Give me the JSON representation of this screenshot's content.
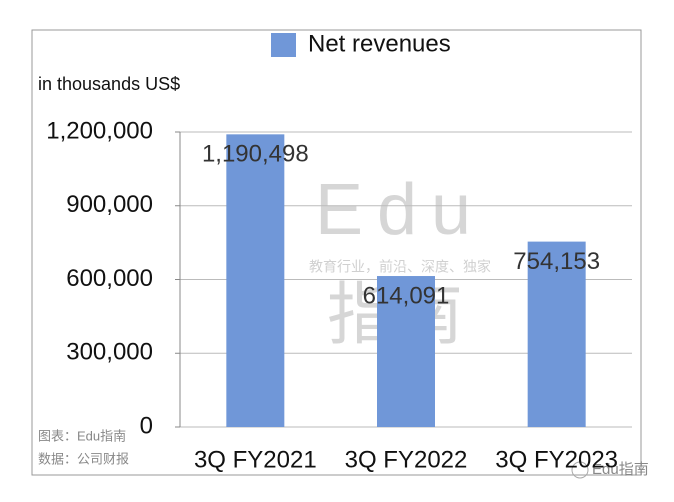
{
  "chart_data": {
    "type": "bar",
    "title": "Net revenues",
    "y_label": "in thousands US$",
    "categories": [
      "3Q FY2021",
      "3Q FY2022",
      "3Q FY2023"
    ],
    "series": [
      {
        "name": "Net revenues",
        "color": "#7097d8",
        "values": [
          1190498,
          614091,
          754153
        ],
        "value_labels": [
          "1,190,498",
          "614,091",
          "754,153"
        ]
      }
    ],
    "ylim": [
      0,
      1200000
    ],
    "yticks": [
      0,
      {
        "value": 300000,
        "label": "300,000"
      },
      {
        "value": 600000,
        "label": "600,000"
      },
      {
        "value": 900000,
        "label": "900,000"
      },
      {
        "value": 1200000,
        "label": "1,200,000"
      }
    ],
    "grid": true,
    "legend": "top"
  },
  "watermark": {
    "brand": "Edu",
    "brand_cn": "指南",
    "slogan": "教育行业，前沿、深度、独家"
  },
  "notes": [
    "图表：Edu指南",
    "数据：公司财报"
  ],
  "badge": "Edu指南"
}
